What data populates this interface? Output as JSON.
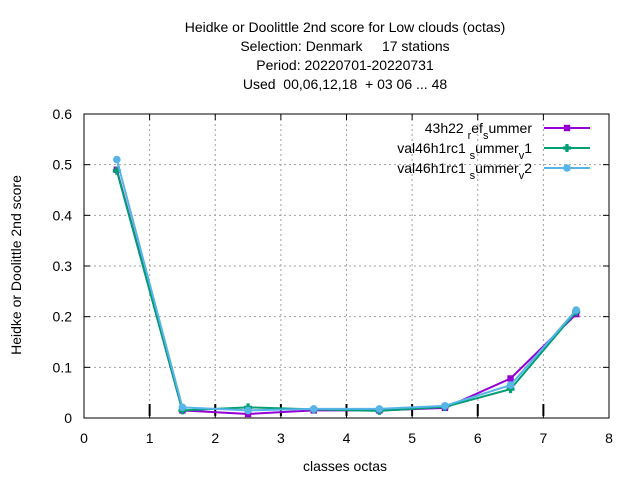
{
  "chart_data": {
    "type": "line",
    "title_lines": [
      "Heidke or Doolittle 2nd score  for Low clouds (octas)",
      "Selection: Denmark     17 stations",
      "Period: 20220701-20220731",
      "Used  00,06,12,18  + 03 06 ... 48"
    ],
    "xlabel": "classes octas",
    "ylabel": "Heidke or Doolittle 2nd score",
    "xlim": [
      0,
      8
    ],
    "ylim": [
      0,
      0.6
    ],
    "xticks": [
      "0",
      "1",
      "2",
      "3",
      "4",
      "5",
      "6",
      "7",
      "8"
    ],
    "yticks": [
      "0",
      "0.1",
      "0.2",
      "0.3",
      "0.4",
      "0.5",
      "0.6"
    ],
    "grid": true,
    "legend_position": "top-right",
    "x": [
      0.5,
      1.5,
      2.5,
      3.5,
      4.5,
      5.5,
      6.5,
      7.5
    ],
    "series": [
      {
        "legend": [
          {
            "t": "43h22 "
          },
          {
            "t": "r",
            "sub": true
          },
          {
            "t": "ef"
          },
          {
            "t": "s",
            "sub": true
          },
          {
            "t": "ummer"
          }
        ],
        "color": "#9400d3",
        "marker": "square",
        "values": [
          0.49,
          0.015,
          0.008,
          0.015,
          0.015,
          0.02,
          0.078,
          0.205
        ]
      },
      {
        "legend": [
          {
            "t": "val46h1rc1 "
          },
          {
            "t": "s",
            "sub": true
          },
          {
            "t": "ummer"
          },
          {
            "t": "v",
            "sub": true
          },
          {
            "t": "1"
          }
        ],
        "color": "#009e73",
        "marker": "cross",
        "values": [
          0.488,
          0.015,
          0.021,
          0.017,
          0.014,
          0.022,
          0.057,
          0.21
        ]
      },
      {
        "legend": [
          {
            "t": "val46h1rc1 "
          },
          {
            "t": "s",
            "sub": true
          },
          {
            "t": "ummer"
          },
          {
            "t": "v",
            "sub": true
          },
          {
            "t": "2"
          }
        ],
        "color": "#56b4e9",
        "marker": "circle",
        "values": [
          0.51,
          0.021,
          0.015,
          0.018,
          0.018,
          0.024,
          0.065,
          0.213
        ]
      }
    ],
    "reference_ticks_x": [
      1,
      2,
      3,
      4,
      5,
      6,
      7
    ]
  }
}
